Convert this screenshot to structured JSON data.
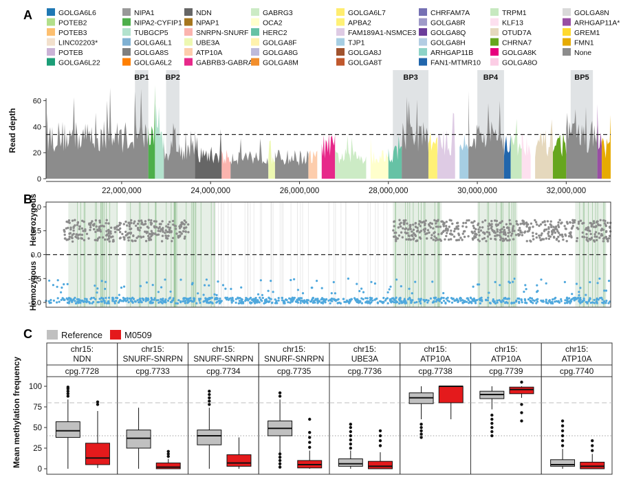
{
  "panels": {
    "a": "A",
    "b": "B",
    "c": "C"
  },
  "legend_a": [
    {
      "label": "GOLGA6L6",
      "color": "#1f78b4"
    },
    {
      "label": "POTEB2",
      "color": "#b2df8a"
    },
    {
      "label": "POTEB3",
      "color": "#fdbf6f"
    },
    {
      "label": "LINC02203*",
      "color": "#f2e0cc"
    },
    {
      "label": "POTEB",
      "color": "#cab2d6"
    },
    {
      "label": "GOLGA6L22",
      "color": "#1b9e77"
    },
    {
      "label": "NIPA1",
      "color": "#999999"
    },
    {
      "label": "NIPA2-CYFIP1",
      "color": "#4daf4a"
    },
    {
      "label": "TUBGCP5",
      "color": "#b3e2cd"
    },
    {
      "label": "GOLGA6L1",
      "color": "#80b1d3"
    },
    {
      "label": "GOLGA8S",
      "color": "#7f7f7f"
    },
    {
      "label": "GOLGA6L2",
      "color": "#ff7f00"
    },
    {
      "label": "NDN",
      "color": "#666666"
    },
    {
      "label": "NPAP1",
      "color": "#a6761d"
    },
    {
      "label": "SNRPN-SNURF",
      "color": "#fbb4ae"
    },
    {
      "label": "UBE3A",
      "color": "#edf8b1"
    },
    {
      "label": "ATP10A",
      "color": "#fdcdac"
    },
    {
      "label": "GABRB3-GABRA5",
      "color": "#e7298a"
    },
    {
      "label": "GABRG3",
      "color": "#ccebc5"
    },
    {
      "label": "OCA2",
      "color": "#ffffcc"
    },
    {
      "label": "HERC2",
      "color": "#66c2a5"
    },
    {
      "label": "GOLGA8F",
      "color": "#fff2ae"
    },
    {
      "label": "GOLGA8G",
      "color": "#bebada"
    },
    {
      "label": "GOLGA8M",
      "color": "#f28e2b"
    },
    {
      "label": "GOLGA6L7",
      "color": "#ffed6f"
    },
    {
      "label": "APBA2",
      "color": "#fff176"
    },
    {
      "label": "FAM189A1-NSMCE3",
      "color": "#decbe4"
    },
    {
      "label": "TJP1",
      "color": "#a6cee3"
    },
    {
      "label": "GOLGA8J",
      "color": "#a0522d"
    },
    {
      "label": "GOLGA8T",
      "color": "#c0582d"
    },
    {
      "label": "CHRFAM7A",
      "color": "#7570b3"
    },
    {
      "label": "GOLGA8R",
      "color": "#9e9ac8"
    },
    {
      "label": "GOLGA8Q",
      "color": "#6a3d9a"
    },
    {
      "label": "GOLGA8H",
      "color": "#b3cde3"
    },
    {
      "label": "ARHGAP11B",
      "color": "#8dd3c7"
    },
    {
      "label": "FAN1-MTMR10",
      "color": "#2166ac"
    },
    {
      "label": "TRPM1",
      "color": "#c7e9c0"
    },
    {
      "label": "KLF13",
      "color": "#fde0ef"
    },
    {
      "label": "OTUD7A",
      "color": "#e5d8bd"
    },
    {
      "label": "CHRNA7",
      "color": "#66a61e"
    },
    {
      "label": "GOLGA8K",
      "color": "#e7007d"
    },
    {
      "label": "GOLGA8O",
      "color": "#fccde5"
    },
    {
      "label": "GOLGA8N",
      "color": "#d9d9d9"
    },
    {
      "label": "ARHGAP11A*",
      "color": "#984ea3"
    },
    {
      "label": "GREM1",
      "color": "#ffd92f"
    },
    {
      "label": "FMN1",
      "color": "#e6ab02"
    },
    {
      "label": "None",
      "color": "#8c8c8c"
    }
  ],
  "breakpoints": [
    "BP1",
    "BP2",
    "BP3",
    "BP4",
    "BP5"
  ],
  "chart_data": [
    {
      "type": "area",
      "panel": "A",
      "ylabel": "Read depth",
      "ylim": [
        0,
        75
      ],
      "yticks": [
        0,
        20,
        40,
        60
      ],
      "xlim": [
        20300000,
        33000000
      ],
      "xticks": [
        22000000,
        24000000,
        26000000,
        28000000,
        30000000,
        32000000
      ],
      "xtick_labels": [
        "22,000,000",
        "24,000,000",
        "26,000,000",
        "28,000,000",
        "30,000,000",
        "32,000,000"
      ],
      "threshold": 34,
      "breakpoint_regions": [
        {
          "label": "BP1",
          "x": [
            22300000,
            22600000
          ]
        },
        {
          "label": "BP2",
          "x": [
            23000000,
            23300000
          ]
        },
        {
          "label": "BP3",
          "x": [
            28100000,
            28900000
          ]
        },
        {
          "label": "BP4",
          "x": [
            30000000,
            30600000
          ]
        },
        {
          "label": "BP5",
          "x": [
            32100000,
            32600000
          ]
        }
      ],
      "segments": [
        {
          "gene": "None",
          "x": [
            20300000,
            22600000
          ],
          "depth": 36
        },
        {
          "gene": "NIPA2-CYFIP1",
          "x": [
            22600000,
            22750000
          ],
          "depth": 38
        },
        {
          "gene": "TUBGCP5",
          "x": [
            22750000,
            22950000
          ],
          "depth": 34
        },
        {
          "gene": "None",
          "x": [
            22950000,
            23650000
          ],
          "depth": 24
        },
        {
          "gene": "NDN",
          "x": [
            23650000,
            24250000
          ],
          "depth": 20
        },
        {
          "gene": "SNRPN-SNURF",
          "x": [
            24250000,
            24450000
          ],
          "depth": 18
        },
        {
          "gene": "None",
          "x": [
            24450000,
            25300000
          ],
          "depth": 19
        },
        {
          "gene": "UBE3A",
          "x": [
            25300000,
            25450000
          ],
          "depth": 18
        },
        {
          "gene": "None",
          "x": [
            25450000,
            26200000
          ],
          "depth": 18
        },
        {
          "gene": "ATP10A",
          "x": [
            26200000,
            26400000
          ],
          "depth": 18
        },
        {
          "gene": "GABRB3-GABRA5",
          "x": [
            26500000,
            26800000
          ],
          "depth": 28
        },
        {
          "gene": "GABRG3",
          "x": [
            26800000,
            27500000
          ],
          "depth": 19
        },
        {
          "gene": "OCA2",
          "x": [
            27600000,
            28000000
          ],
          "depth": 19
        },
        {
          "gene": "HERC2",
          "x": [
            28000000,
            28300000
          ],
          "depth": 22
        },
        {
          "gene": "None",
          "x": [
            28300000,
            28900000
          ],
          "depth": 36
        },
        {
          "gene": "APBA2",
          "x": [
            28900000,
            29100000
          ],
          "depth": 30
        },
        {
          "gene": "FAM189A1-NSMCE3",
          "x": [
            29100000,
            29500000
          ],
          "depth": 30
        },
        {
          "gene": "TJP1",
          "x": [
            29600000,
            29800000
          ],
          "depth": 30
        },
        {
          "gene": "None",
          "x": [
            29800000,
            30600000
          ],
          "depth": 36
        },
        {
          "gene": "FAN1-MTMR10",
          "x": [
            30600000,
            30750000
          ],
          "depth": 30
        },
        {
          "gene": "TRPM1",
          "x": [
            30750000,
            31000000
          ],
          "depth": 30
        },
        {
          "gene": "KLF13",
          "x": [
            31000000,
            31200000
          ],
          "depth": 30
        },
        {
          "gene": "OTUD7A",
          "x": [
            31300000,
            31700000
          ],
          "depth": 30
        },
        {
          "gene": "CHRNA7",
          "x": [
            31700000,
            32000000
          ],
          "depth": 30
        },
        {
          "gene": "None",
          "x": [
            32000000,
            32700000
          ],
          "depth": 36
        },
        {
          "gene": "ARHGAP11A*",
          "x": [
            32700000,
            32800000
          ],
          "depth": 30
        },
        {
          "gene": "FMN1",
          "x": [
            32800000,
            33000000
          ],
          "depth": 28
        }
      ]
    },
    {
      "type": "scatter",
      "panel": "B",
      "ylabel_top": "Heterozygous",
      "ylabel_bottom": "Homozygous",
      "ylim": [
        -1.1,
        1.1
      ],
      "yticks": [
        -1.0,
        -0.5,
        0.0,
        0.5,
        1.0
      ],
      "ytick_labels": [
        "-1.0",
        "-0.5",
        "0.0",
        "0.5",
        "1.0"
      ],
      "xlim": [
        20300000,
        33000000
      ],
      "reference_line": 0.0,
      "series": [
        {
          "color": "#8c8c8c",
          "y_center": 0.5,
          "x_ranges": [
            [
              20700000,
              23500000
            ],
            [
              28100000,
              29800000
            ],
            [
              29800000,
              32000000
            ],
            [
              32000000,
              33000000
            ]
          ]
        },
        {
          "color": "#4fa8dd",
          "y_center": -0.9,
          "x_ranges": [
            [
              20300000,
              33000000
            ]
          ]
        }
      ],
      "shaded_regions": [
        [
          20800000,
          21900000
        ],
        [
          22100000,
          23400000
        ],
        [
          23400000,
          24100000
        ],
        [
          28100000,
          29200000
        ],
        [
          30000000,
          30900000
        ],
        [
          32200000,
          32900000
        ]
      ]
    },
    {
      "type": "box",
      "panel": "C",
      "ylabel": "Mean methylation frequency",
      "ylim": [
        0,
        100
      ],
      "yticks": [
        0,
        25,
        50,
        75,
        100
      ],
      "dashed_line": 80,
      "dotted_line": 40,
      "legend": [
        {
          "label": "Reference",
          "color": "#c0c0c0"
        },
        {
          "label": "M0509",
          "color": "#e41a1c"
        }
      ],
      "facets": [
        {
          "region": "chr15:",
          "gene": "NDN",
          "cpg": "cpg.7728",
          "reference": {
            "min": 0,
            "q1": 38,
            "median": 46,
            "q3": 57,
            "max": 84,
            "outliers": [
              88,
              91,
              94,
              97,
              99
            ]
          },
          "m0509": {
            "min": 1,
            "q1": 5,
            "median": 13,
            "q3": 31,
            "max": 70,
            "outliers": [
              78,
              81
            ]
          }
        },
        {
          "region": "chr15:",
          "gene": "SNURF-SNRPN",
          "cpg": "cpg.7733",
          "reference": {
            "min": 0,
            "q1": 25,
            "median": 37,
            "q3": 47,
            "max": 74,
            "outliers": []
          },
          "m0509": {
            "min": 0,
            "q1": 0,
            "median": 2,
            "q3": 7,
            "max": 12,
            "outliers": [
              15,
              18,
              21
            ]
          }
        },
        {
          "region": "chr15:",
          "gene": "SNURF-SNRPN",
          "cpg": "cpg.7734",
          "reference": {
            "min": 0,
            "q1": 29,
            "median": 40,
            "q3": 47,
            "max": 74,
            "outliers": [
              78,
              82,
              86,
              90,
              94
            ]
          },
          "m0509": {
            "min": 0,
            "q1": 3,
            "median": 7,
            "q3": 17,
            "max": 38,
            "outliers": []
          }
        },
        {
          "region": "chr15:",
          "gene": "SNURF-SNRPN",
          "cpg": "cpg.7735",
          "reference": {
            "min": 0,
            "q1": 40,
            "median": 49,
            "q3": 58,
            "max": 84,
            "outliers": [
              2,
              6,
              10,
              14,
              18,
              88,
              92
            ]
          },
          "m0509": {
            "min": 0,
            "q1": 1,
            "median": 5,
            "q3": 10,
            "max": 22,
            "outliers": [
              26,
              32,
              38,
              44,
              60
            ]
          }
        },
        {
          "region": "chr15:",
          "gene": "UBE3A",
          "cpg": "cpg.7736",
          "reference": {
            "min": 0,
            "q1": 3,
            "median": 6,
            "q3": 12,
            "max": 22,
            "outliers": [
              25,
              30,
              35,
              40,
              45,
              50,
              54
            ]
          },
          "m0509": {
            "min": 0,
            "q1": 0,
            "median": 3,
            "q3": 9,
            "max": 20,
            "outliers": [
              28,
              34,
              40,
              46
            ]
          }
        },
        {
          "region": "chr15:",
          "gene": "ATP10A",
          "cpg": "cpg.7738",
          "reference": {
            "min": 60,
            "q1": 79,
            "median": 86,
            "q3": 92,
            "max": 100,
            "outliers": [
              38,
              42,
              46,
              50,
              54
            ]
          },
          "m0509": {
            "min": 60,
            "q1": 80,
            "median": 100,
            "q3": 100,
            "max": 100,
            "outliers": []
          }
        },
        {
          "region": "chr15:",
          "gene": "ATP10A",
          "cpg": "cpg.7739",
          "reference": {
            "min": 72,
            "q1": 85,
            "median": 90,
            "q3": 94,
            "max": 100,
            "outliers": [
              40,
              45,
              50,
              55,
              60,
              65
            ]
          },
          "m0509": {
            "min": 86,
            "q1": 91,
            "median": 96,
            "q3": 99,
            "max": 100,
            "outliers": [
              58,
              68,
              78,
              107
            ]
          }
        },
        {
          "region": "chr15:",
          "gene": "ATP10A",
          "cpg": "cpg.7740",
          "reference": {
            "min": 0,
            "q1": 3,
            "median": 5,
            "q3": 11,
            "max": 24,
            "outliers": [
              28,
              34,
              40,
              46,
              52,
              58
            ]
          },
          "m0509": {
            "min": 0,
            "q1": 0,
            "median": 3,
            "q3": 8,
            "max": 18,
            "outliers": [
              22,
              28,
              34
            ]
          }
        }
      ]
    }
  ]
}
